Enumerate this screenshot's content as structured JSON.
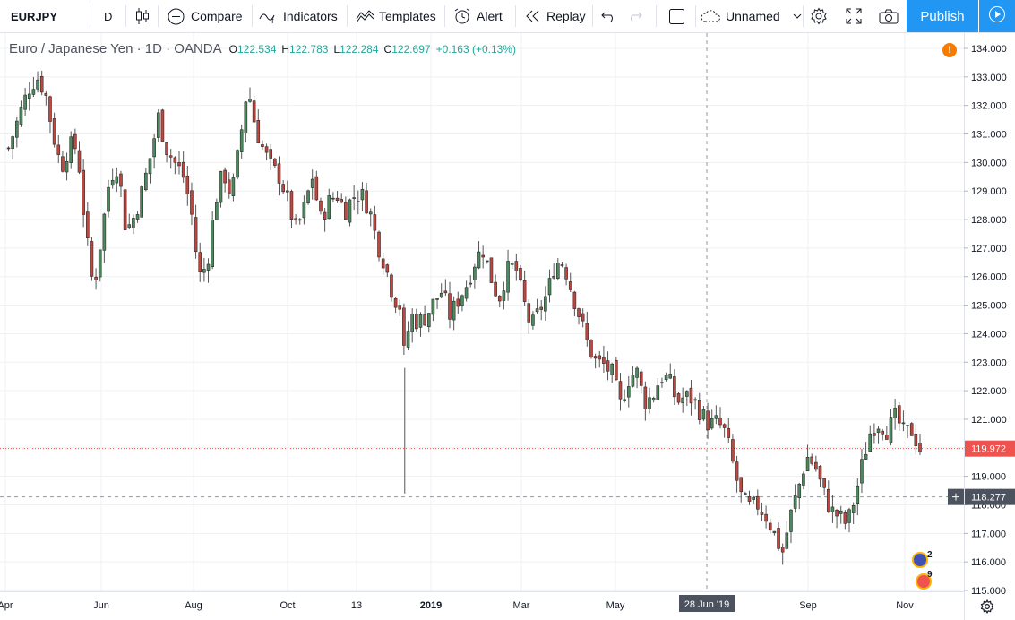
{
  "toolbar": {
    "symbol": "EURJPY",
    "interval": "D",
    "compare_label": "Compare",
    "indicators_label": "Indicators",
    "templates_label": "Templates",
    "alert_label": "Alert",
    "replay_label": "Replay",
    "layout_name": "Unnamed",
    "publish_label": "Publish"
  },
  "legend": {
    "title": "Euro / Japanese Yen · 1D · OANDA",
    "open_label": "O",
    "open": "122.534",
    "high_label": "H",
    "high": "122.783",
    "low_label": "L",
    "low": "122.284",
    "close_label": "C",
    "close": "122.697",
    "change": "+0.163 (+0.13%)"
  },
  "colors": {
    "up": "#26a69a",
    "down": "#ef5350",
    "candle_body_up": "#4a8a5c",
    "candle_body_down": "#c0473f",
    "wick": "#555555",
    "grid": "#eef0f3",
    "axis_text": "#131722",
    "last_price_line": "#ef5350",
    "accent": "#2196f3",
    "warning": "#f57c00"
  },
  "icons": {
    "bar_style": "candles-icon",
    "compare": "plus-circle-icon",
    "indicators": "function-wave-icon",
    "templates": "templates-icon",
    "alert": "alarm-clock-icon",
    "replay": "rewind-icon",
    "undo": "undo-icon",
    "redo": "redo-icon",
    "fullscreen_box": "square-icon",
    "cloud": "cloud-icon",
    "settings": "gear-icon",
    "fullscreen": "fullscreen-icon",
    "snapshot": "camera-icon",
    "play": "play-icon"
  },
  "price_axis": {
    "ticks": [
      "134.000",
      "133.000",
      "132.000",
      "131.000",
      "130.000",
      "129.000",
      "128.000",
      "127.000",
      "126.000",
      "125.000",
      "124.000",
      "123.000",
      "122.000",
      "121.000",
      "120.000",
      "119.000",
      "118.000",
      "117.000",
      "116.000",
      "115.000"
    ],
    "last_price": "119.972",
    "crosshair_price": "118.277"
  },
  "time_axis": {
    "ticks": [
      "Apr",
      "Jun",
      "Aug",
      "Oct",
      "13",
      "2019",
      "Mar",
      "May",
      "28 Jun '19",
      "Sep",
      "Nov"
    ],
    "crosshair_label": "28 Jun '19"
  },
  "badges": {
    "warning": "!",
    "events_top": "2",
    "events_bottom": "9"
  },
  "chart_data": {
    "type": "candlestick",
    "title": "Euro / Japanese Yen · 1D · OANDA",
    "ylim": [
      115,
      134
    ],
    "grid": true,
    "x": [
      "Apr",
      "Jun",
      "Aug",
      "Oct",
      "13",
      "2019",
      "Mar",
      "May",
      "28 Jun '19",
      "Sep",
      "Nov"
    ],
    "close_path": [
      {
        "x": 0.5,
        "y": 130.5
      },
      {
        "x": 2,
        "y": 131.8
      },
      {
        "x": 3,
        "y": 132.6
      },
      {
        "x": 4,
        "y": 133.0
      },
      {
        "x": 5,
        "y": 132.5
      },
      {
        "x": 6,
        "y": 131.0
      },
      {
        "x": 7,
        "y": 129.8
      },
      {
        "x": 8,
        "y": 130.6
      },
      {
        "x": 9,
        "y": 130.5
      },
      {
        "x": 10,
        "y": 127.6
      },
      {
        "x": 11,
        "y": 125.5
      },
      {
        "x": 12,
        "y": 127.5
      },
      {
        "x": 13,
        "y": 129.5
      },
      {
        "x": 14,
        "y": 129.9
      },
      {
        "x": 15,
        "y": 127.6
      },
      {
        "x": 16,
        "y": 128.1
      },
      {
        "x": 17,
        "y": 129.0
      },
      {
        "x": 18,
        "y": 130.2
      },
      {
        "x": 19,
        "y": 131.6
      },
      {
        "x": 20,
        "y": 130.5
      },
      {
        "x": 21,
        "y": 130.0
      },
      {
        "x": 22,
        "y": 129.6
      },
      {
        "x": 23,
        "y": 128.4
      },
      {
        "x": 24,
        "y": 126.0
      },
      {
        "x": 25,
        "y": 126.4
      },
      {
        "x": 26,
        "y": 128.6
      },
      {
        "x": 27,
        "y": 129.7
      },
      {
        "x": 28,
        "y": 128.8
      },
      {
        "x": 29,
        "y": 130.6
      },
      {
        "x": 30,
        "y": 132.7
      },
      {
        "x": 31,
        "y": 131.2
      },
      {
        "x": 32,
        "y": 130.4
      },
      {
        "x": 33,
        "y": 129.8
      },
      {
        "x": 34,
        "y": 129.5
      },
      {
        "x": 35,
        "y": 128.6
      },
      {
        "x": 36,
        "y": 127.6
      },
      {
        "x": 37,
        "y": 128.4
      },
      {
        "x": 38,
        "y": 129.5
      },
      {
        "x": 39,
        "y": 128.0
      },
      {
        "x": 40,
        "y": 128.6
      },
      {
        "x": 41,
        "y": 128.9
      },
      {
        "x": 42,
        "y": 128.3
      },
      {
        "x": 43,
        "y": 128.8
      },
      {
        "x": 44,
        "y": 128.9
      },
      {
        "x": 45,
        "y": 128.4
      },
      {
        "x": 46,
        "y": 127.2
      },
      {
        "x": 47,
        "y": 126.4
      },
      {
        "x": 48,
        "y": 125.3
      },
      {
        "x": 49,
        "y": 124.9
      },
      {
        "x": 49.4,
        "y": 122.8
      },
      {
        "x": 50,
        "y": 124.7
      },
      {
        "x": 51,
        "y": 124.4
      },
      {
        "x": 52,
        "y": 124.6
      },
      {
        "x": 53,
        "y": 125.1
      },
      {
        "x": 54,
        "y": 125.5
      },
      {
        "x": 55,
        "y": 124.6
      },
      {
        "x": 56,
        "y": 125.2
      },
      {
        "x": 57,
        "y": 125.7
      },
      {
        "x": 58,
        "y": 126.5
      },
      {
        "x": 59,
        "y": 127.0
      },
      {
        "x": 60,
        "y": 126.0
      },
      {
        "x": 61,
        "y": 125.2
      },
      {
        "x": 62,
        "y": 126.2
      },
      {
        "x": 63,
        "y": 126.4
      },
      {
        "x": 64,
        "y": 125.2
      },
      {
        "x": 65,
        "y": 124.2
      },
      {
        "x": 66,
        "y": 124.8
      },
      {
        "x": 67,
        "y": 125.4
      },
      {
        "x": 68,
        "y": 126.5
      },
      {
        "x": 69,
        "y": 126.5
      },
      {
        "x": 70,
        "y": 125.5
      },
      {
        "x": 71,
        "y": 124.6
      },
      {
        "x": 72,
        "y": 123.6
      },
      {
        "x": 73,
        "y": 123.0
      },
      {
        "x": 74,
        "y": 122.9
      },
      {
        "x": 75,
        "y": 122.6
      },
      {
        "x": 76,
        "y": 121.5
      },
      {
        "x": 77,
        "y": 122.4
      },
      {
        "x": 78,
        "y": 122.7
      },
      {
        "x": 79,
        "y": 121.6
      },
      {
        "x": 80,
        "y": 121.8
      },
      {
        "x": 81,
        "y": 122.5
      },
      {
        "x": 82,
        "y": 122.4
      },
      {
        "x": 83,
        "y": 121.6
      },
      {
        "x": 84,
        "y": 121.8
      },
      {
        "x": 85,
        "y": 121.7
      },
      {
        "x": 86,
        "y": 121.2
      },
      {
        "x": 87,
        "y": 120.8
      },
      {
        "x": 88,
        "y": 120.9
      },
      {
        "x": 89,
        "y": 120.5
      },
      {
        "x": 90,
        "y": 119.3
      },
      {
        "x": 91,
        "y": 118.2
      },
      {
        "x": 92,
        "y": 117.9
      },
      {
        "x": 93,
        "y": 118.0
      },
      {
        "x": 94,
        "y": 117.6
      },
      {
        "x": 95,
        "y": 117.0
      },
      {
        "x": 96,
        "y": 116.3
      },
      {
        "x": 97,
        "y": 117.6
      },
      {
        "x": 98,
        "y": 118.6
      },
      {
        "x": 99,
        "y": 119.7
      },
      {
        "x": 100,
        "y": 119.4
      },
      {
        "x": 101,
        "y": 118.5
      },
      {
        "x": 102,
        "y": 117.8
      },
      {
        "x": 103,
        "y": 117.6
      },
      {
        "x": 104,
        "y": 117.3
      },
      {
        "x": 105,
        "y": 118.3
      },
      {
        "x": 106,
        "y": 119.6
      },
      {
        "x": 107,
        "y": 120.7
      },
      {
        "x": 108,
        "y": 120.9
      },
      {
        "x": 109,
        "y": 120.6
      },
      {
        "x": 110,
        "y": 121.1
      },
      {
        "x": 111,
        "y": 120.5
      },
      {
        "x": 112,
        "y": 120.6
      },
      {
        "x": 113,
        "y": 119.97
      }
    ],
    "last_price": 119.972,
    "crosshair_price": 118.277,
    "crosshair_date": "28 Jun '19"
  }
}
